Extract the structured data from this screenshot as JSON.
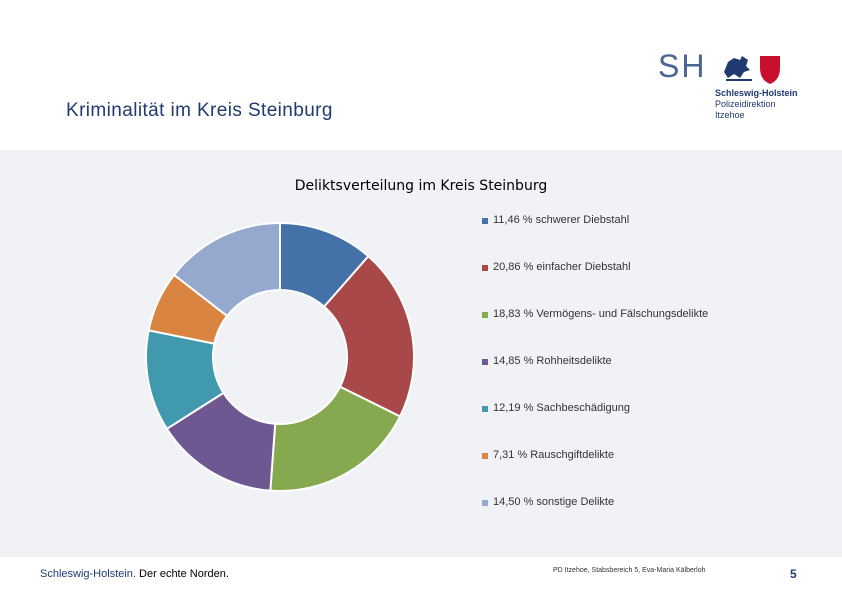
{
  "header": {
    "title": "Kriminalität im Kreis Steinburg"
  },
  "logo": {
    "mark": "SH",
    "name": "Schleswig-Holstein",
    "sub1": "Polizeidirektion",
    "sub2": "Itzehoe",
    "icon": "coat-of-arms-icon"
  },
  "chart_data": {
    "type": "pie",
    "subtype": "donut",
    "title": "Deliktsverteilung im Kreis Steinburg",
    "legend_position": "right",
    "slices": [
      {
        "value": 11.46,
        "label": "11,46  % schwerer Diebstahl",
        "color": "#4472a8"
      },
      {
        "value": 20.86,
        "label": "20,86  % einfacher Diebstahl",
        "color": "#a94848"
      },
      {
        "value": 18.83,
        "label": "18,83 % Vermögens- und Fälschungsdelikte",
        "color": "#86a84e"
      },
      {
        "value": 14.85,
        "label": "14,85  % Rohheitsdelikte",
        "color": "#6f5892"
      },
      {
        "value": 12.19,
        "label": "12,19 %  Sachbeschädigung",
        "color": "#4199ad"
      },
      {
        "value": 7.31,
        "label": "7,31  % Rauschgiftdelikte",
        "color": "#d98440"
      },
      {
        "value": 14.5,
        "label": "14,50 % sonstige Delikte",
        "color": "#95a9cf"
      }
    ]
  },
  "footer": {
    "brand": "Schleswig-Holstein.",
    "slogan": " Der echte Norden.",
    "credit": "PD Itzehoe, Stabsbereich 5, Eva-Maria Kälberloh",
    "page": "5"
  }
}
